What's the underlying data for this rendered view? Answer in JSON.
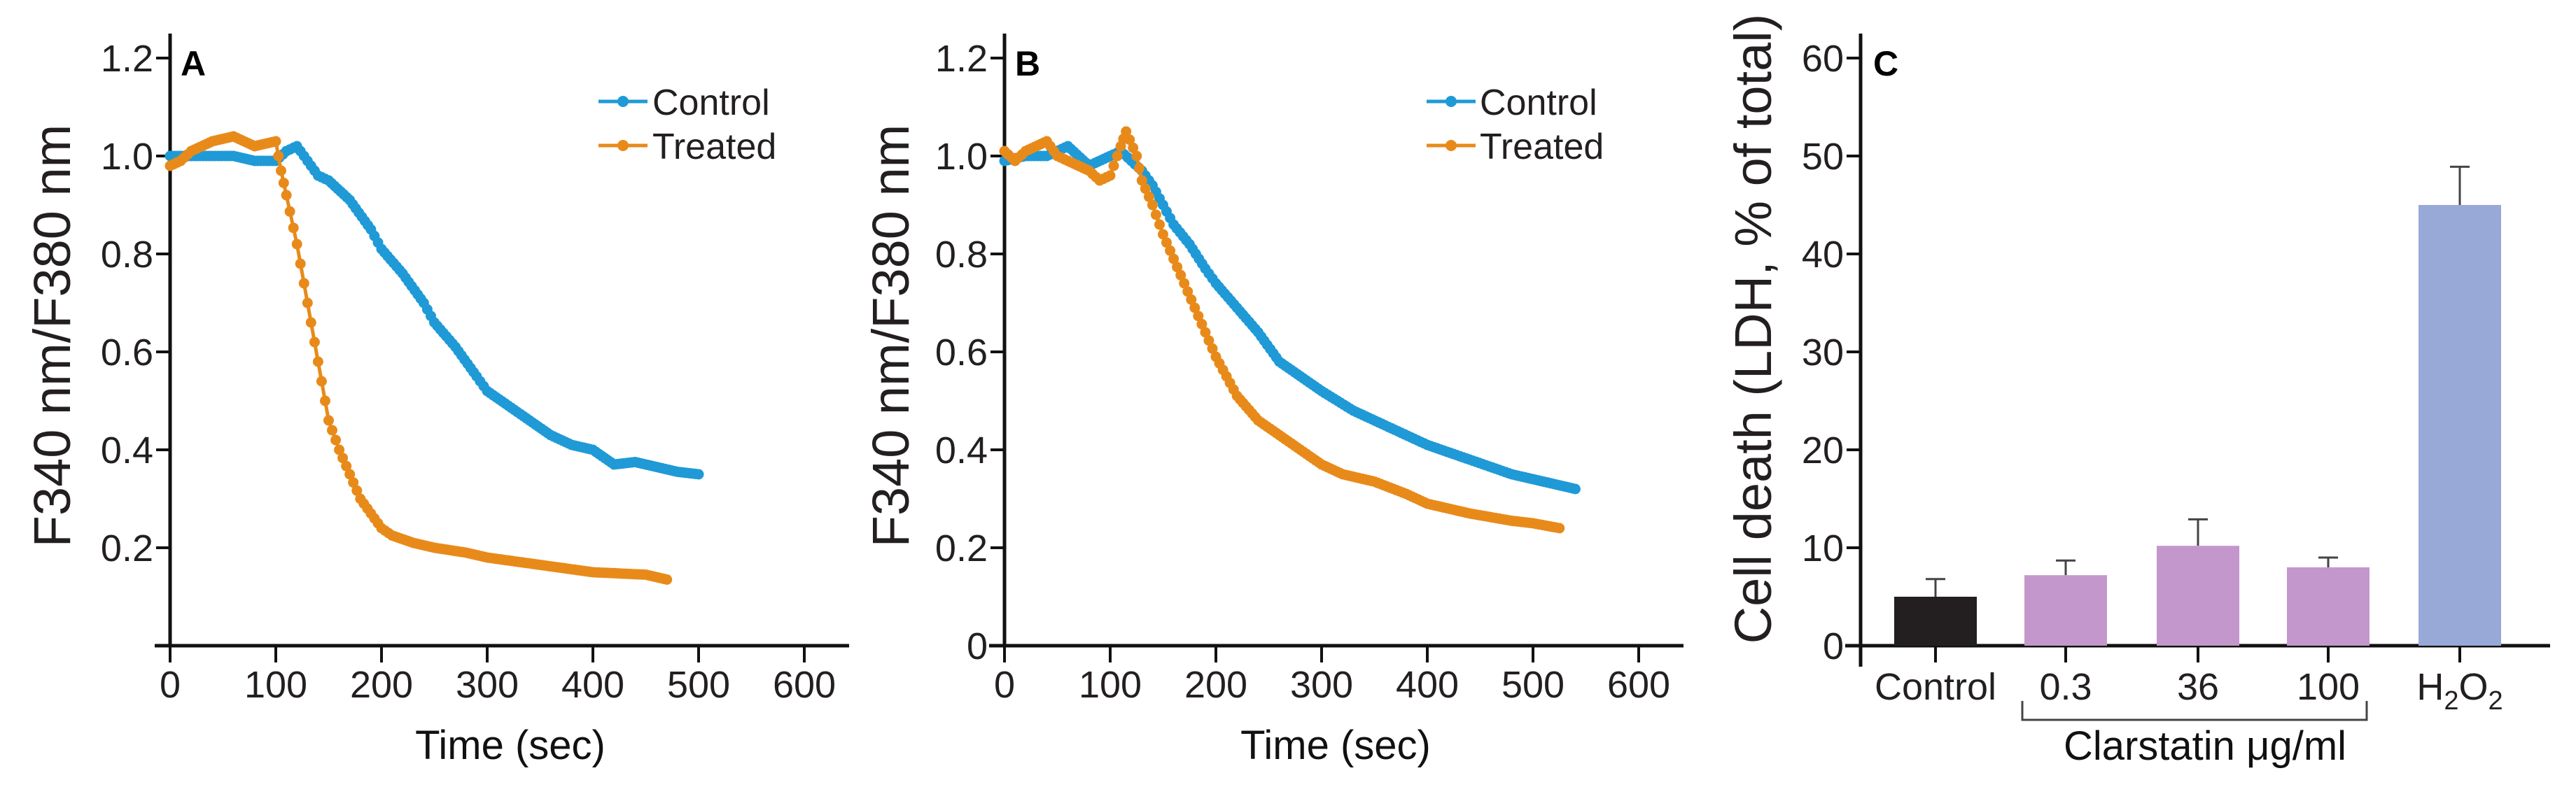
{
  "colors": {
    "control": "#1f9ad6",
    "treated": "#e88a1a",
    "bar_control": "#231f20",
    "bar_clarstatin": "#c497cc",
    "bar_h2o2": "#98a9d8"
  },
  "chart_data": [
    {
      "type": "line",
      "panel": "A",
      "xlabel": "Time (sec)",
      "ylabel": "F340 nm/F380 nm",
      "xlim": [
        0,
        600
      ],
      "ylim": [
        0,
        1.2
      ],
      "xticks": [
        "0",
        "100",
        "200",
        "300",
        "400",
        "500",
        "600"
      ],
      "yticks": [
        "0.2",
        "0.4",
        "0.6",
        "0.8",
        "1.0",
        "1.2"
      ],
      "legend_position": "top-right",
      "series": [
        {
          "name": "Control",
          "x": [
            0,
            20,
            40,
            60,
            80,
            100,
            110,
            120,
            130,
            140,
            150,
            170,
            190,
            200,
            220,
            240,
            250,
            270,
            290,
            300,
            320,
            340,
            360,
            380,
            400,
            420,
            440,
            460,
            480,
            500
          ],
          "y": [
            1.0,
            1.0,
            1.0,
            1.0,
            0.99,
            0.99,
            1.01,
            1.02,
            0.99,
            0.96,
            0.95,
            0.91,
            0.85,
            0.81,
            0.76,
            0.7,
            0.66,
            0.61,
            0.55,
            0.52,
            0.49,
            0.46,
            0.43,
            0.41,
            0.4,
            0.37,
            0.375,
            0.365,
            0.355,
            0.35
          ]
        },
        {
          "name": "Treated",
          "x": [
            0,
            10,
            20,
            40,
            60,
            80,
            100,
            105,
            110,
            120,
            130,
            140,
            150,
            160,
            170,
            180,
            190,
            200,
            210,
            230,
            250,
            280,
            300,
            350,
            400,
            450,
            470
          ],
          "y": [
            0.98,
            0.99,
            1.01,
            1.03,
            1.04,
            1.02,
            1.03,
            0.97,
            0.92,
            0.82,
            0.7,
            0.58,
            0.46,
            0.4,
            0.35,
            0.3,
            0.27,
            0.24,
            0.225,
            0.21,
            0.2,
            0.19,
            0.18,
            0.165,
            0.15,
            0.145,
            0.135
          ]
        }
      ]
    },
    {
      "type": "line",
      "panel": "B",
      "xlabel": "Time (sec)",
      "ylabel": "F340 nm/F380 nm",
      "xlim": [
        0,
        600
      ],
      "ylim": [
        0,
        1.2
      ],
      "xticks": [
        "0",
        "100",
        "200",
        "300",
        "400",
        "500",
        "600"
      ],
      "yticks": [
        "0",
        "0.2",
        "0.4",
        "0.6",
        "0.8",
        "1.0",
        "1.2"
      ],
      "legend_position": "top-right",
      "series": [
        {
          "name": "Control",
          "x": [
            0,
            20,
            40,
            60,
            80,
            100,
            110,
            120,
            130,
            140,
            150,
            160,
            175,
            190,
            200,
            220,
            240,
            260,
            280,
            300,
            330,
            360,
            400,
            440,
            480,
            520,
            540
          ],
          "y": [
            0.99,
            1.0,
            1.0,
            1.02,
            0.98,
            1.0,
            1.01,
            0.99,
            0.97,
            0.94,
            0.9,
            0.86,
            0.82,
            0.77,
            0.74,
            0.69,
            0.64,
            0.58,
            0.55,
            0.52,
            0.48,
            0.45,
            0.41,
            0.38,
            0.35,
            0.33,
            0.32
          ]
        },
        {
          "name": "Treated",
          "x": [
            0,
            10,
            20,
            40,
            50,
            60,
            80,
            90,
            100,
            110,
            115,
            125,
            130,
            140,
            150,
            160,
            170,
            180,
            190,
            200,
            210,
            220,
            240,
            260,
            280,
            300,
            320,
            350,
            380,
            400,
            440,
            480,
            500,
            525
          ],
          "y": [
            1.01,
            0.99,
            1.01,
            1.03,
            1.0,
            0.99,
            0.97,
            0.95,
            0.96,
            1.02,
            1.05,
            1.0,
            0.95,
            0.9,
            0.84,
            0.79,
            0.74,
            0.69,
            0.64,
            0.59,
            0.55,
            0.51,
            0.46,
            0.43,
            0.4,
            0.37,
            0.35,
            0.335,
            0.31,
            0.29,
            0.27,
            0.255,
            0.25,
            0.24
          ]
        }
      ]
    },
    {
      "type": "bar",
      "panel": "C",
      "ylabel": "Cell death (LDH, % of total)",
      "ylim": [
        0,
        60
      ],
      "yticks": [
        "0",
        "10",
        "20",
        "30",
        "40",
        "50",
        "60"
      ],
      "categories": [
        "Control",
        "0.3",
        "36",
        "100",
        "H2O2"
      ],
      "values": [
        5.0,
        7.2,
        10.2,
        8.0,
        45.0
      ],
      "errors": [
        1.8,
        1.5,
        2.7,
        1.0,
        3.9
      ],
      "group_label": "Clarstatin μg/ml",
      "h2o2_parts": {
        "h": "H",
        "sub1": "2",
        "o": "O",
        "sub2": "2"
      }
    }
  ]
}
